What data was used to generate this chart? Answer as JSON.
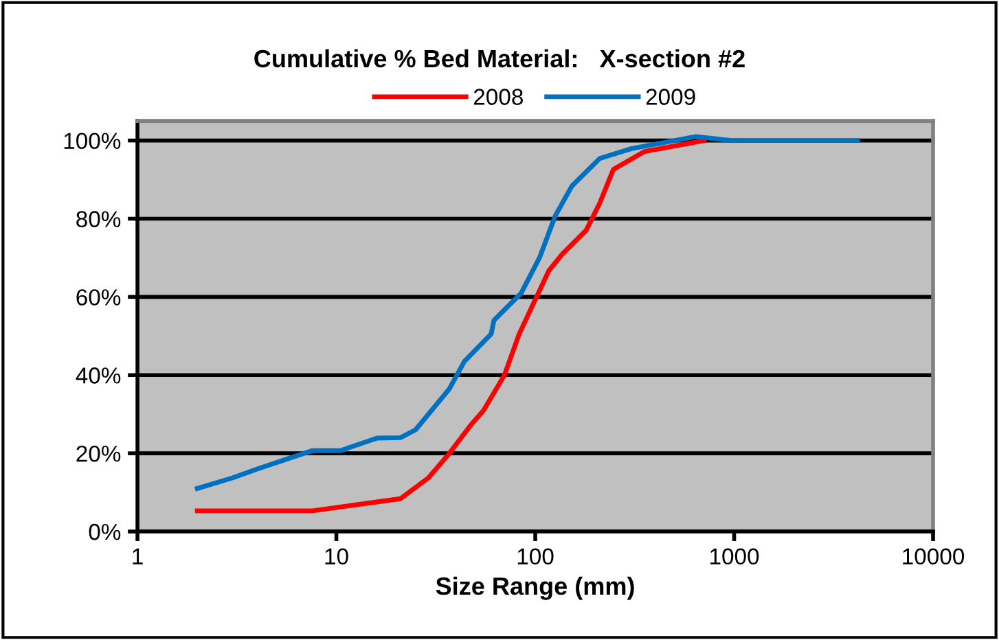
{
  "chart_data": {
    "type": "line",
    "title": "Cumulative % Bed Material:   X-section #2",
    "xlabel": "Size Range (mm)",
    "log": "x",
    "xlim": [
      1,
      10000
    ],
    "xticks": [
      1,
      10,
      100,
      1000,
      10000
    ],
    "ylim": [
      0,
      105
    ],
    "yticks": [
      {
        "value": 0,
        "label": "0%"
      },
      {
        "value": 20,
        "label": "20%"
      },
      {
        "value": 40,
        "label": "40%"
      },
      {
        "value": 60,
        "label": "60%"
      },
      {
        "value": 80,
        "label": "80%"
      },
      {
        "value": 100,
        "label": "100%"
      }
    ],
    "grid": "y",
    "legend": "top",
    "marker": "none",
    "line_style": "solid",
    "series": [
      {
        "name": "2008",
        "color": "#ff0000",
        "x": [
          2,
          7.6,
          21,
          29,
          37,
          47,
          55,
          70,
          83,
          117,
          137,
          180,
          211,
          247,
          355,
          707
        ],
        "values": [
          5.3,
          5.3,
          8.4,
          13.7,
          20,
          27,
          31,
          40,
          50.5,
          66.7,
          71,
          77,
          84,
          92.6,
          97.2,
          100
        ]
      },
      {
        "name": "2009",
        "color": "#0070c0",
        "x": [
          2,
          3,
          4,
          6,
          7.6,
          10.5,
          16,
          21,
          25,
          37,
          44,
          60,
          62,
          85,
          105,
          126,
          153,
          211,
          303,
          641,
          968,
          4170
        ],
        "values": [
          11,
          13.7,
          16,
          19,
          20.7,
          20.7,
          23.9,
          24,
          26,
          36.5,
          43.5,
          50.5,
          54,
          61,
          70,
          80.7,
          88.4,
          95.4,
          97.9,
          101,
          100,
          100
        ]
      }
    ]
  }
}
